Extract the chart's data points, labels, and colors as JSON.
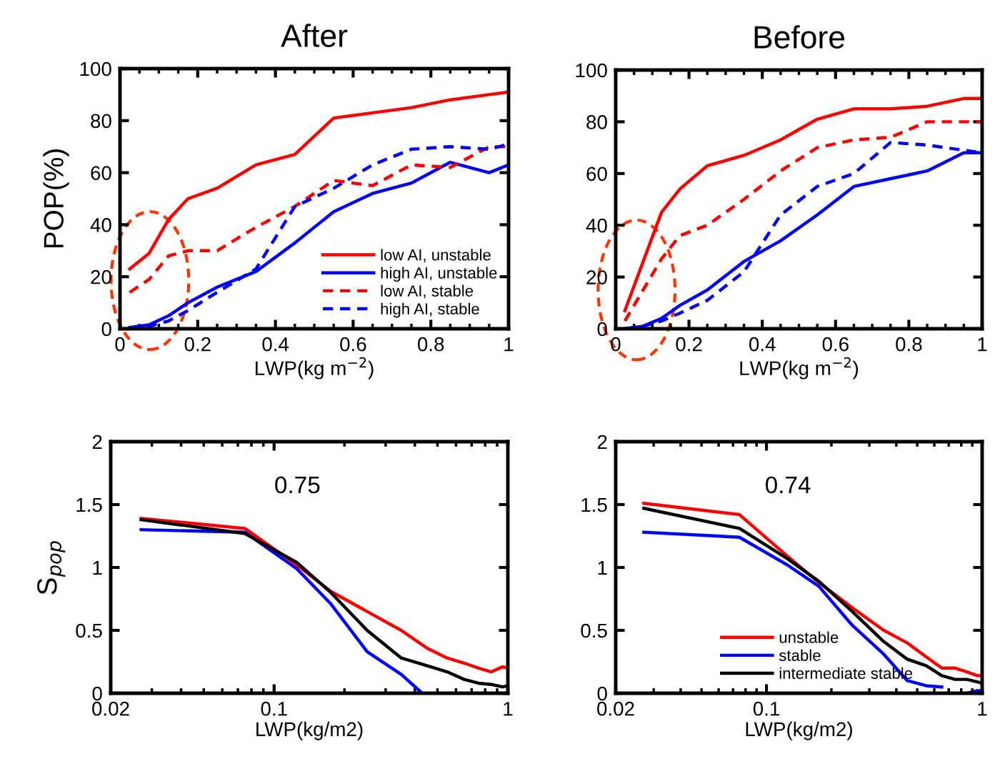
{
  "chart_data": [
    {
      "type": "line",
      "title": "After",
      "xlabel": "LWP(kg m$^{−2}$)",
      "ylabel": "POP(%)",
      "x": [
        0.025,
        0.075,
        0.125,
        0.175,
        0.25,
        0.35,
        0.45,
        0.55,
        0.65,
        0.75,
        0.85,
        0.95,
        1.0
      ],
      "xlim": [
        0,
        1
      ],
      "xticks": [
        0,
        0.2,
        0.4,
        0.6,
        0.8,
        1
      ],
      "ylim": [
        0,
        100
      ],
      "yticks": [
        0,
        20,
        40,
        60,
        80,
        100
      ],
      "legend": "lower right",
      "series": [
        {
          "name": "low AI, unstable",
          "color": "#ff0000",
          "line_style": "solid",
          "values": [
            23,
            29,
            42,
            50,
            54,
            63,
            67,
            81,
            83,
            85,
            88,
            90,
            91
          ]
        },
        {
          "name": "high AI, unstable",
          "color": "#0000ff",
          "line_style": "solid",
          "values": [
            0.5,
            1.5,
            5,
            10,
            16,
            22,
            33,
            45,
            52,
            56,
            64,
            60,
            63
          ]
        },
        {
          "name": "low AI, stable",
          "color": "#ff0000",
          "line_style": "dashed",
          "values": [
            14,
            19,
            28,
            30,
            30,
            39,
            47,
            57,
            55,
            63,
            62,
            70,
            70
          ]
        },
        {
          "name": "high AI, stable",
          "color": "#0000ff",
          "line_style": "dashed",
          "values": [
            0.3,
            1,
            3,
            7,
            14,
            23,
            47,
            54,
            63,
            69,
            70,
            69,
            71
          ]
        }
      ]
    },
    {
      "type": "line",
      "title": "Before",
      "xlabel": "LWP(kg m$^{−2}$)",
      "x": [
        0.025,
        0.075,
        0.125,
        0.175,
        0.25,
        0.35,
        0.45,
        0.55,
        0.65,
        0.75,
        0.85,
        0.95,
        1.0
      ],
      "xlim": [
        0,
        1
      ],
      "xticks": [
        0,
        0.2,
        0.4,
        0.6,
        0.8,
        1
      ],
      "ylim": [
        0,
        100
      ],
      "yticks": [
        0,
        20,
        40,
        60,
        80,
        100
      ],
      "series": [
        {
          "color": "#ff0000",
          "line_style": "solid",
          "values": [
            7,
            26,
            45,
            54,
            63,
            67,
            73,
            81,
            85,
            85,
            86,
            89,
            89
          ]
        },
        {
          "color": "#0000ff",
          "line_style": "solid",
          "values": [
            0,
            1,
            4,
            9,
            15,
            26,
            34,
            44,
            55,
            58,
            61,
            68,
            68
          ]
        },
        {
          "color": "#ff0000",
          "line_style": "dashed",
          "values": [
            3,
            15,
            27,
            36,
            40,
            50,
            61,
            70,
            73,
            74,
            80,
            80,
            80
          ]
        },
        {
          "color": "#0000ff",
          "line_style": "dashed",
          "values": [
            0,
            1,
            3,
            6,
            11,
            22,
            44,
            55,
            60,
            72,
            71,
            69,
            68
          ]
        }
      ]
    },
    {
      "type": "line",
      "xlabel": "LWP(kg/m2)",
      "ylabel": "S$_{pop}$",
      "log": "x",
      "annotations": [
        "0.75"
      ],
      "x": [
        0.027,
        0.075,
        0.125,
        0.175,
        0.25,
        0.35,
        0.45,
        0.55,
        0.65,
        0.75,
        0.85,
        0.95,
        1.0
      ],
      "xlim": [
        0.02,
        1
      ],
      "xticks": [
        0.02,
        0.1,
        1
      ],
      "ylim": [
        0,
        2
      ],
      "yticks": [
        0,
        0.5,
        1,
        1.5,
        2
      ],
      "series": [
        {
          "color": "#ff0000",
          "values": [
            1.39,
            1.31,
            1.02,
            0.81,
            0.65,
            0.5,
            0.36,
            0.28,
            0.24,
            0.2,
            0.17,
            0.21,
            0.2
          ]
        },
        {
          "color": "#0000ff",
          "x": [
            0.027,
            0.075,
            0.125,
            0.175,
            0.25,
            0.35,
            0.43
          ],
          "values": [
            1.3,
            1.28,
            0.99,
            0.71,
            0.33,
            0.15,
            0
          ]
        },
        {
          "color": "#000000",
          "values": [
            1.38,
            1.27,
            1.04,
            0.8,
            0.5,
            0.28,
            0.22,
            0.17,
            0.11,
            0.08,
            0.07,
            0.05,
            0.06
          ]
        }
      ]
    },
    {
      "type": "line",
      "xlabel": "LWP(kg/m2)",
      "log": "x",
      "annotations": [
        "0.74"
      ],
      "legend": "bottom",
      "x": [
        0.027,
        0.075,
        0.125,
        0.175,
        0.25,
        0.35,
        0.45,
        0.55,
        0.65,
        0.75,
        0.85,
        0.95,
        1.0
      ],
      "xlim": [
        0.02,
        1
      ],
      "xticks": [
        0.02,
        0.1,
        1
      ],
      "ylim": [
        0,
        2
      ],
      "yticks": [
        0,
        0.5,
        1,
        1.5,
        2
      ],
      "series": [
        {
          "name": "unstable",
          "color": "#ff0000",
          "values": [
            1.51,
            1.42,
            1.09,
            0.88,
            0.68,
            0.5,
            0.4,
            0.29,
            0.2,
            0.2,
            0.17,
            0.14,
            0.14
          ]
        },
        {
          "name": "stable",
          "color": "#0000ff",
          "values": [
            1.28,
            1.24,
            1.02,
            0.85,
            0.54,
            0.31,
            0.1,
            0.06,
            0.05,
            null,
            0,
            0.02,
            0.02
          ]
        },
        {
          "name": "intermediate stable",
          "color": "#000000",
          "values": [
            1.47,
            1.31,
            1.07,
            0.89,
            0.65,
            0.41,
            0.27,
            0.22,
            0.14,
            0.11,
            0.11,
            0.09,
            0.08
          ]
        }
      ]
    }
  ]
}
